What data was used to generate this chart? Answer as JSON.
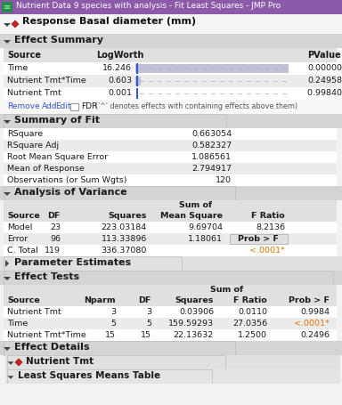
{
  "title_bar": "Nutrient Data 9 species with analysis - Fit Least Squares - JMP Pro",
  "title_bar_color": "#8b5aa8",
  "bg_color": "#f2f2f2",
  "white_bg": "#ffffff",
  "response_header": "Response Basal diameter (mm)",
  "effect_summary_header": "Effect Summary",
  "effect_summary_rows": [
    [
      "Time",
      "16.246",
      "0.00000"
    ],
    [
      "Nutrient Tmt*Time",
      "0.603",
      "0.24958"
    ],
    [
      "Nutrient Tmt",
      "0.001",
      "0.99840 ^"
    ]
  ],
  "fdr_note": "(''^'' denotes effects with containing effects above them)",
  "summary_fit_header": "Summary of Fit",
  "summary_fit_rows": [
    [
      "RSquare",
      "0.663054"
    ],
    [
      "RSquare Adj",
      "0.582327"
    ],
    [
      "Root Mean Square Error",
      "1.086561"
    ],
    [
      "Mean of Response",
      "2.794917"
    ],
    [
      "Observations (or Sum Wgts)",
      "120"
    ]
  ],
  "anova_header": "Analysis of Variance",
  "anova_rows": [
    [
      "Model",
      "23",
      "223.03184",
      "9.69704",
      "8.2136"
    ],
    [
      "Error",
      "96",
      "113.33896",
      "1.18061",
      ""
    ],
    [
      "C. Total",
      "119",
      "336.37080",
      "",
      ""
    ]
  ],
  "param_estimates_header": "Parameter Estimates",
  "effect_tests_header": "Effect Tests",
  "effect_tests_rows": [
    [
      "Nutrient Tmt",
      "3",
      "3",
      "0.03906",
      "0.0110",
      "0.9984"
    ],
    [
      "Time",
      "5",
      "5",
      "159.59293",
      "27.0356",
      "<.0001*"
    ],
    [
      "Nutrient Tmt*Time",
      "15",
      "15",
      "22.13632",
      "1.2500",
      "0.2496"
    ]
  ],
  "effect_details_header": "Effect Details",
  "nutrient_tmt_header": "Nutrient Tmt",
  "least_sq_means_header": "Least Squares Means Table",
  "orange_color": "#e07000",
  "blue_link_color": "#3355bb",
  "header_bg": "#d4d4d4",
  "subheader_bg": "#e0e0e0",
  "row_even": "#ffffff",
  "row_odd": "#ebebeb",
  "table_area_bg": "#f8f8f8"
}
